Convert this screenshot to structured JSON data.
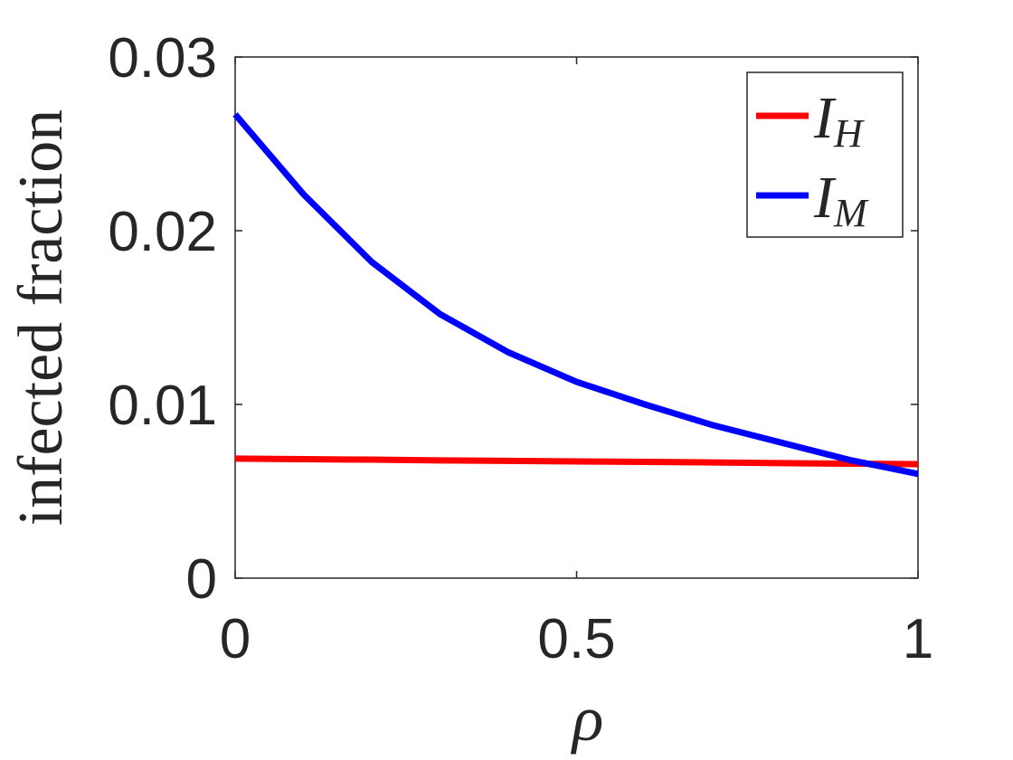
{
  "chart_data": {
    "type": "line",
    "xlabel": "ρ",
    "ylabel": "infected fraction",
    "x": [
      0,
      0.1,
      0.2,
      0.3,
      0.4,
      0.5,
      0.6,
      0.7,
      0.8,
      0.9,
      1
    ],
    "series": [
      {
        "name": "I",
        "subscript": "H",
        "color": "#ff0000",
        "values": [
          0.00688,
          0.00685,
          0.00682,
          0.00678,
          0.00675,
          0.00672,
          0.00669,
          0.00666,
          0.00662,
          0.00659,
          0.00656
        ]
      },
      {
        "name": "I",
        "subscript": "M",
        "color": "#0000ff",
        "values": [
          0.0267,
          0.0221,
          0.0182,
          0.0152,
          0.013,
          0.0113,
          0.01,
          0.0088,
          0.0078,
          0.0068,
          0.006
        ]
      }
    ],
    "xlim": [
      0,
      1
    ],
    "ylim": [
      0,
      0.03
    ],
    "xticks": [
      0,
      0.5,
      1
    ],
    "yticks": [
      0,
      0.01,
      0.02,
      0.03
    ],
    "legend": "top-right"
  }
}
